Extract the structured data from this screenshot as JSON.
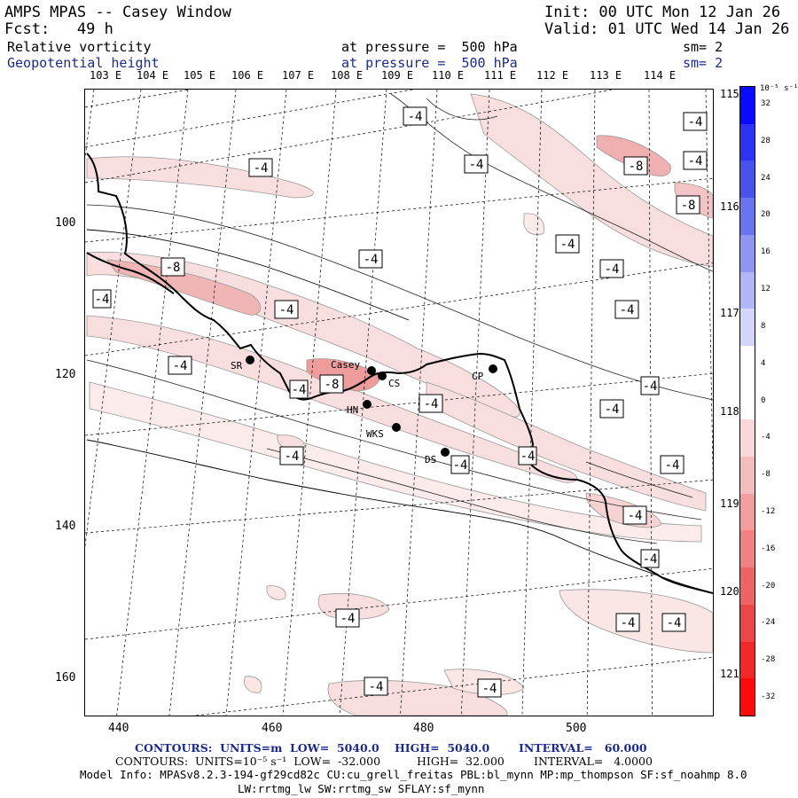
{
  "header": {
    "title": "AMPS MPAS -- Casey Window",
    "init": "Init: 00 UTC Mon 12 Jan 26",
    "fcst": "Fcst:   49 h",
    "valid": "Valid: 01 UTC Wed 14 Jan 26",
    "field1": {
      "name": "Relative vorticity",
      "level": "at pressure =  500 hPa",
      "smooth": "sm= 2"
    },
    "field2": {
      "name": "Geopotential height",
      "level": "at pressure =  500 hPa",
      "smooth": "sm= 2"
    }
  },
  "map": {
    "top_lon_labels": [
      "103 E",
      "104 E",
      "105 E",
      "106 E",
      "107 E",
      "108 E",
      "109 E",
      "110 E",
      "111 E",
      "112 E",
      "113 E",
      "114 E"
    ],
    "right_lon_labels": [
      "115 E",
      "116 E",
      "117 E",
      "118 E",
      "119 E",
      "120 E",
      "121 E"
    ],
    "x_ticks": [
      "440",
      "460",
      "480",
      "500"
    ],
    "y_ticks": [
      "100",
      "120",
      "140",
      "160"
    ],
    "contour_labels": [
      "-4",
      "-4",
      "-4",
      "-8",
      "-4",
      "-4",
      "-8",
      "-8",
      "-4",
      "-4",
      "-4",
      "-4",
      "-4",
      "-4",
      "-4",
      "-8",
      "-4",
      "-4",
      "-4",
      "-4",
      "-4",
      "-4",
      "-4",
      "-4",
      "-4",
      "-4",
      "-4",
      "-4",
      "-4",
      "-4",
      "-4"
    ],
    "stations": [
      {
        "name": "SR",
        "lon": 456.8,
        "lat": 118.0
      },
      {
        "name": "Casey",
        "lon": 472.8,
        "lat": 119.5
      },
      {
        "name": "CS",
        "lon": 473.8,
        "lat": 120.0
      },
      {
        "name": "CP",
        "lon": 489.0,
        "lat": 119.0
      },
      {
        "name": "HN",
        "lon": 471.5,
        "lat": 123.5
      },
      {
        "name": "WKS",
        "lon": 475.8,
        "lat": 126.5
      },
      {
        "name": "DS",
        "lon": 482.5,
        "lat": 130.0
      }
    ]
  },
  "colorbar": {
    "unit": "10⁻⁵ s⁻¹",
    "labels": [
      "32",
      "28",
      "24",
      "20",
      "16",
      "12",
      "8",
      "4",
      "0",
      "-4",
      "-8",
      "-12",
      "-16",
      "-20",
      "-24",
      "-28",
      "-32"
    ],
    "colors": [
      "#0a0aff",
      "#2e32f2",
      "#4a52ee",
      "#6a74f0",
      "#8e96f2",
      "#b0b6f6",
      "#d3d6f8",
      "#ffffff",
      "#ffffff",
      "#f8d8d8",
      "#f4bcbc",
      "#f29e9e",
      "#f08282",
      "#ee6464",
      "#ec4646",
      "#f02828",
      "#ff0a0a"
    ]
  },
  "footer": {
    "line1_a": "CONTOURS:  UNITS=m  LOW=  5040.0",
    "line1_b": "HIGH=  5040.0",
    "line1_c": "INTERVAL=   60.000",
    "line2_a": "CONTOURS:  UNITS=10⁻⁵ s⁻¹  LOW=  -32.000",
    "line2_b": "HIGH=  32.000",
    "line2_c": "INTERVAL=   4.0000",
    "line3": "Model Info: MPASv8.2.3-194-gf29cd82c CU:cu_grell_freitas PBL:bl_mynn MP:mp_thompson SF:sf_noahmp 8.0",
    "line4": "LW:rrtmg_lw SW:rrtmg_sw SFLAY:sf_mynn"
  }
}
